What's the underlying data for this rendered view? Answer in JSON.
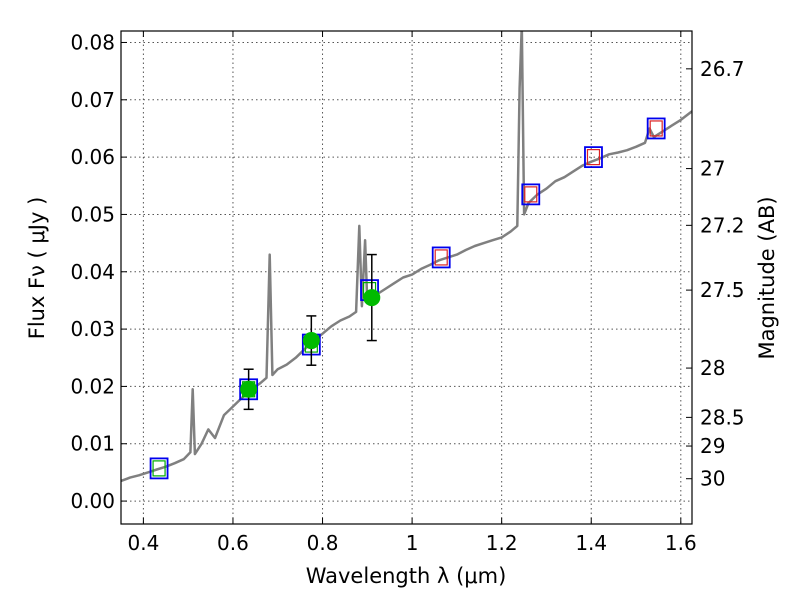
{
  "chart_data": {
    "type": "scatter",
    "xlabel": "Wavelength  λ (μm)",
    "ylabel": "Flux  Fν  ( μJy )",
    "ylabel_right": "Magnitude (AB)",
    "xlim": [
      0.35,
      1.625
    ],
    "ylim": [
      -0.004,
      0.082
    ],
    "grid": true,
    "x_ticks": [
      0.4,
      0.6,
      0.8,
      1.0,
      1.2,
      1.4,
      1.6
    ],
    "x_tick_labels": [
      "0.4",
      "0.6",
      "0.8",
      "1",
      "1.2",
      "1.4",
      "1.6"
    ],
    "y_ticks": [
      0.0,
      0.01,
      0.02,
      0.03,
      0.04,
      0.05,
      0.06,
      0.07,
      0.08
    ],
    "y_tick_labels": [
      "0.00",
      "0.01",
      "0.02",
      "0.03",
      "0.04",
      "0.05",
      "0.06",
      "0.07",
      "0.08"
    ],
    "right_ticks": [
      {
        "label": "26.7",
        "flux": 0.0754
      },
      {
        "label": "27",
        "flux": 0.058
      },
      {
        "label": "27.2",
        "flux": 0.0481
      },
      {
        "label": "27.5",
        "flux": 0.0368
      },
      {
        "label": "28",
        "flux": 0.0232
      },
      {
        "label": "28.5",
        "flux": 0.0146
      },
      {
        "label": "29",
        "flux": 0.0096
      },
      {
        "label": "30",
        "flux": 0.0039
      }
    ],
    "colors": {
      "spectrum": "#808080",
      "observed": "#00bb00",
      "error_bar": "#000000",
      "model_box": "#0000ee",
      "model_inner_green": "#00aa00",
      "model_inner_red": "#dd2222"
    },
    "series": [
      {
        "values": [
          [
            0.35,
            0.0035
          ],
          [
            0.37,
            0.0041
          ],
          [
            0.39,
            0.0045
          ],
          [
            0.41,
            0.005
          ],
          [
            0.43,
            0.0055
          ],
          [
            0.45,
            0.006
          ],
          [
            0.47,
            0.0066
          ],
          [
            0.49,
            0.0073
          ],
          [
            0.505,
            0.0085
          ],
          [
            0.51,
            0.0195
          ],
          [
            0.515,
            0.0082
          ],
          [
            0.53,
            0.01
          ],
          [
            0.545,
            0.0125
          ],
          [
            0.56,
            0.011
          ],
          [
            0.58,
            0.015
          ],
          [
            0.6,
            0.0165
          ],
          [
            0.62,
            0.018
          ],
          [
            0.64,
            0.0195
          ],
          [
            0.66,
            0.0205
          ],
          [
            0.675,
            0.0215
          ],
          [
            0.682,
            0.043
          ],
          [
            0.688,
            0.022
          ],
          [
            0.7,
            0.023
          ],
          [
            0.72,
            0.0238
          ],
          [
            0.74,
            0.025
          ],
          [
            0.76,
            0.0265
          ],
          [
            0.78,
            0.028
          ],
          [
            0.8,
            0.0292
          ],
          [
            0.82,
            0.0305
          ],
          [
            0.84,
            0.0315
          ],
          [
            0.86,
            0.0322
          ],
          [
            0.875,
            0.033
          ],
          [
            0.882,
            0.048
          ],
          [
            0.888,
            0.034
          ],
          [
            0.895,
            0.0455
          ],
          [
            0.9,
            0.0345
          ],
          [
            0.92,
            0.036
          ],
          [
            0.94,
            0.037
          ],
          [
            0.96,
            0.038
          ],
          [
            0.98,
            0.039
          ],
          [
            1.0,
            0.0395
          ],
          [
            1.02,
            0.0405
          ],
          [
            1.04,
            0.0412
          ],
          [
            1.06,
            0.042
          ],
          [
            1.08,
            0.0425
          ],
          [
            1.1,
            0.043
          ],
          [
            1.12,
            0.0438
          ],
          [
            1.14,
            0.0445
          ],
          [
            1.16,
            0.045
          ],
          [
            1.18,
            0.0455
          ],
          [
            1.2,
            0.046
          ],
          [
            1.22,
            0.047
          ],
          [
            1.235,
            0.048
          ],
          [
            1.24,
            0.072
          ],
          [
            1.245,
            0.083
          ],
          [
            1.25,
            0.05
          ],
          [
            1.26,
            0.052
          ],
          [
            1.28,
            0.0535
          ],
          [
            1.3,
            0.0545
          ],
          [
            1.32,
            0.0558
          ],
          [
            1.34,
            0.0565
          ],
          [
            1.36,
            0.0575
          ],
          [
            1.38,
            0.0585
          ],
          [
            1.4,
            0.0592
          ],
          [
            1.42,
            0.0598
          ],
          [
            1.44,
            0.0605
          ],
          [
            1.46,
            0.0608
          ],
          [
            1.48,
            0.0612
          ],
          [
            1.5,
            0.0618
          ],
          [
            1.52,
            0.0625
          ],
          [
            1.53,
            0.065
          ],
          [
            1.54,
            0.0635
          ],
          [
            1.56,
            0.0645
          ],
          [
            1.58,
            0.0655
          ],
          [
            1.6,
            0.0665
          ],
          [
            1.625,
            0.068
          ]
        ]
      },
      {
        "values": [
          {
            "x": 0.635,
            "y": 0.0195,
            "err": 0.0035
          },
          {
            "x": 0.775,
            "y": 0.028,
            "err": 0.0043
          },
          {
            "x": 0.91,
            "y": 0.0355,
            "err": 0.0075
          }
        ]
      },
      {
        "values": [
          {
            "x": 0.435,
            "y": 0.0057,
            "inner": "green"
          },
          {
            "x": 0.635,
            "y": 0.0195,
            "inner": "green"
          },
          {
            "x": 0.775,
            "y": 0.0273,
            "inner": "green"
          },
          {
            "x": 0.905,
            "y": 0.0368,
            "inner": "green"
          },
          {
            "x": 1.065,
            "y": 0.0425,
            "inner": "red"
          },
          {
            "x": 1.265,
            "y": 0.0535,
            "inner": "red"
          },
          {
            "x": 1.405,
            "y": 0.06,
            "inner": "red"
          },
          {
            "x": 1.545,
            "y": 0.065,
            "inner": "red"
          }
        ]
      }
    ]
  }
}
